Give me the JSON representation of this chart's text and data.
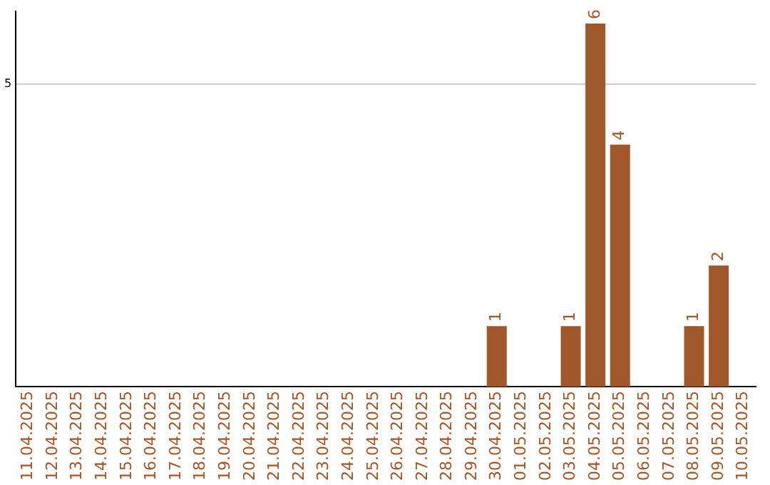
{
  "chart_data": {
    "type": "bar",
    "categories": [
      "11.04.2025",
      "12.04.2025",
      "13.04.2025",
      "14.04.2025",
      "15.04.2025",
      "16.04.2025",
      "17.04.2025",
      "18.04.2025",
      "19.04.2025",
      "20.04.2025",
      "21.04.2025",
      "22.04.2025",
      "23.04.2025",
      "24.04.2025",
      "25.04.2025",
      "26.04.2025",
      "27.04.2025",
      "28.04.2025",
      "29.04.2025",
      "30.04.2025",
      "01.05.2025",
      "02.05.2025",
      "03.05.2025",
      "04.05.2025",
      "05.05.2025",
      "06.05.2025",
      "07.05.2025",
      "08.05.2025",
      "09.05.2025",
      "10.05.2025"
    ],
    "values": [
      null,
      null,
      null,
      null,
      null,
      null,
      null,
      null,
      null,
      null,
      null,
      null,
      null,
      null,
      null,
      null,
      null,
      null,
      null,
      1,
      null,
      null,
      1,
      6,
      4,
      null,
      null,
      1,
      2,
      null
    ],
    "color": "#a0582a",
    "ylim": [
      0,
      6.2
    ],
    "yticks": [
      5
    ],
    "grid": "y",
    "data_labels": true,
    "legend": false
  }
}
